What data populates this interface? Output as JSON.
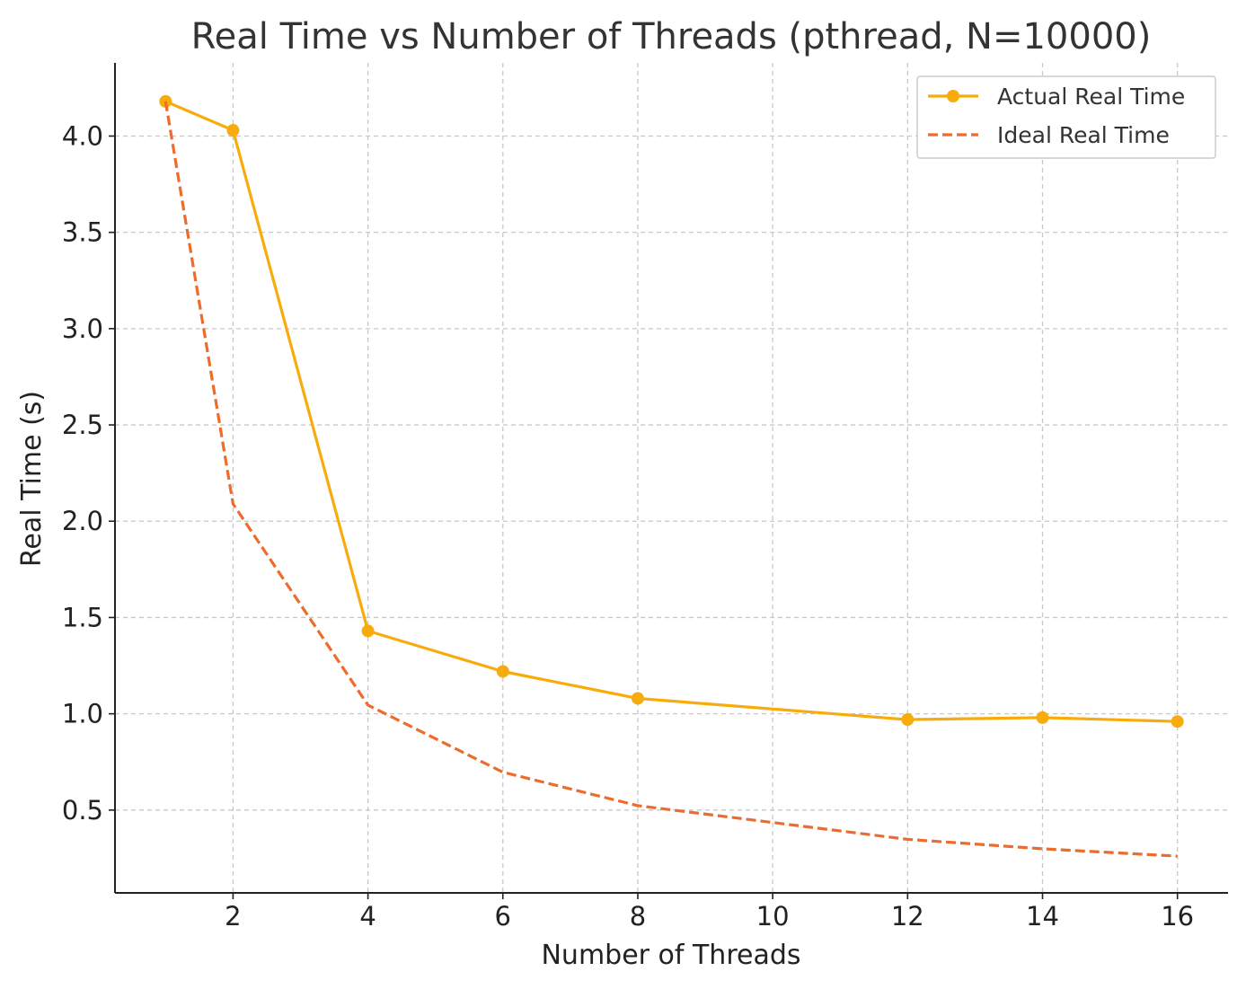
{
  "chart_data": {
    "type": "line",
    "title": "Real Time vs Number of Threads (pthread, N=10000)",
    "xlabel": "Number of Threads",
    "ylabel": "Real Time (s)",
    "xlim": [
      0.25,
      16.75
    ],
    "ylim": [
      0.07,
      4.38
    ],
    "xticks": [
      2,
      4,
      6,
      8,
      10,
      12,
      14,
      16
    ],
    "yticks": [
      0.5,
      1.0,
      1.5,
      2.0,
      2.5,
      3.0,
      3.5,
      4.0
    ],
    "ytick_labels": [
      "0.5",
      "1.0",
      "1.5",
      "2.0",
      "2.5",
      "3.0",
      "3.5",
      "4.0"
    ],
    "grid": true,
    "legend_position": "top-right",
    "x": [
      1,
      2,
      4,
      6,
      8,
      12,
      14,
      16
    ],
    "series": [
      {
        "name": "Actual Real Time",
        "values": [
          4.18,
          4.03,
          1.43,
          1.22,
          1.08,
          0.97,
          0.98,
          0.96
        ],
        "color": "#f8ac0c",
        "style": "solid",
        "marker": "circle"
      },
      {
        "name": "Ideal Real Time",
        "values": [
          4.18,
          2.09,
          1.045,
          0.697,
          0.523,
          0.348,
          0.299,
          0.261
        ],
        "color": "#ee6b2c",
        "style": "dashed",
        "marker": "none"
      }
    ]
  }
}
